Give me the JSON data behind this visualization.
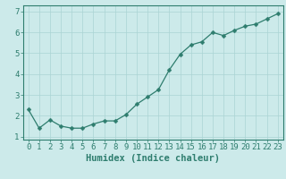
{
  "x": [
    0,
    1,
    2,
    3,
    4,
    5,
    6,
    7,
    8,
    9,
    10,
    11,
    12,
    13,
    14,
    15,
    16,
    17,
    18,
    19,
    20,
    21,
    22,
    23
  ],
  "y": [
    2.3,
    1.4,
    1.8,
    1.5,
    1.4,
    1.4,
    1.6,
    1.75,
    1.75,
    2.05,
    2.55,
    2.9,
    3.25,
    4.2,
    4.95,
    5.4,
    5.55,
    6.0,
    5.85,
    6.1,
    6.3,
    6.4,
    6.65,
    6.9
  ],
  "xlabel": "Humidex (Indice chaleur)",
  "line_color": "#2e7d6e",
  "marker_color": "#2e7d6e",
  "bg_color": "#cceaea",
  "grid_color": "#aad4d4",
  "axis_color": "#2e7d6e",
  "tick_label_color": "#2e7d6e",
  "xlabel_color": "#2e7d6e",
  "ylim": [
    0.85,
    7.3
  ],
  "xlim": [
    -0.5,
    23.5
  ],
  "yticks": [
    1,
    2,
    3,
    4,
    5,
    6,
    7
  ],
  "xticks": [
    0,
    1,
    2,
    3,
    4,
    5,
    6,
    7,
    8,
    9,
    10,
    11,
    12,
    13,
    14,
    15,
    16,
    17,
    18,
    19,
    20,
    21,
    22,
    23
  ],
  "font_size": 6.5,
  "xlabel_font_size": 7.5,
  "marker_size": 2.5,
  "linewidth": 0.9
}
